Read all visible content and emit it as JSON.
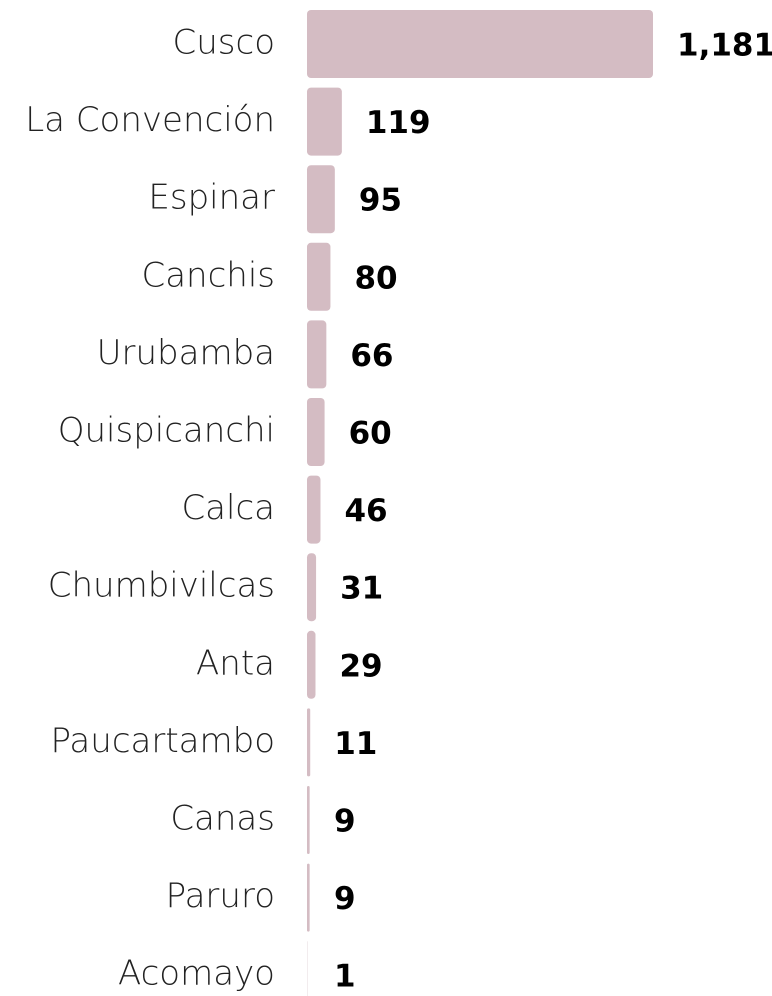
{
  "chart_data": {
    "type": "bar",
    "orientation": "horizontal",
    "categories": [
      "Cusco",
      "La Convención",
      "Espinar",
      "Canchis",
      "Urubamba",
      "Quispicanchi",
      "Calca",
      "Chumbivilcas",
      "Anta",
      "Paucartambo",
      "Canas",
      "Paruro",
      "Acomayo"
    ],
    "values": [
      1181,
      119,
      95,
      80,
      66,
      60,
      46,
      31,
      29,
      11,
      9,
      9,
      1
    ],
    "value_labels": [
      "1,181",
      "119",
      "95",
      "80",
      "66",
      "60",
      "46",
      "31",
      "29",
      "11",
      "9",
      "9",
      "1"
    ],
    "color": "#d4bcc3"
  }
}
